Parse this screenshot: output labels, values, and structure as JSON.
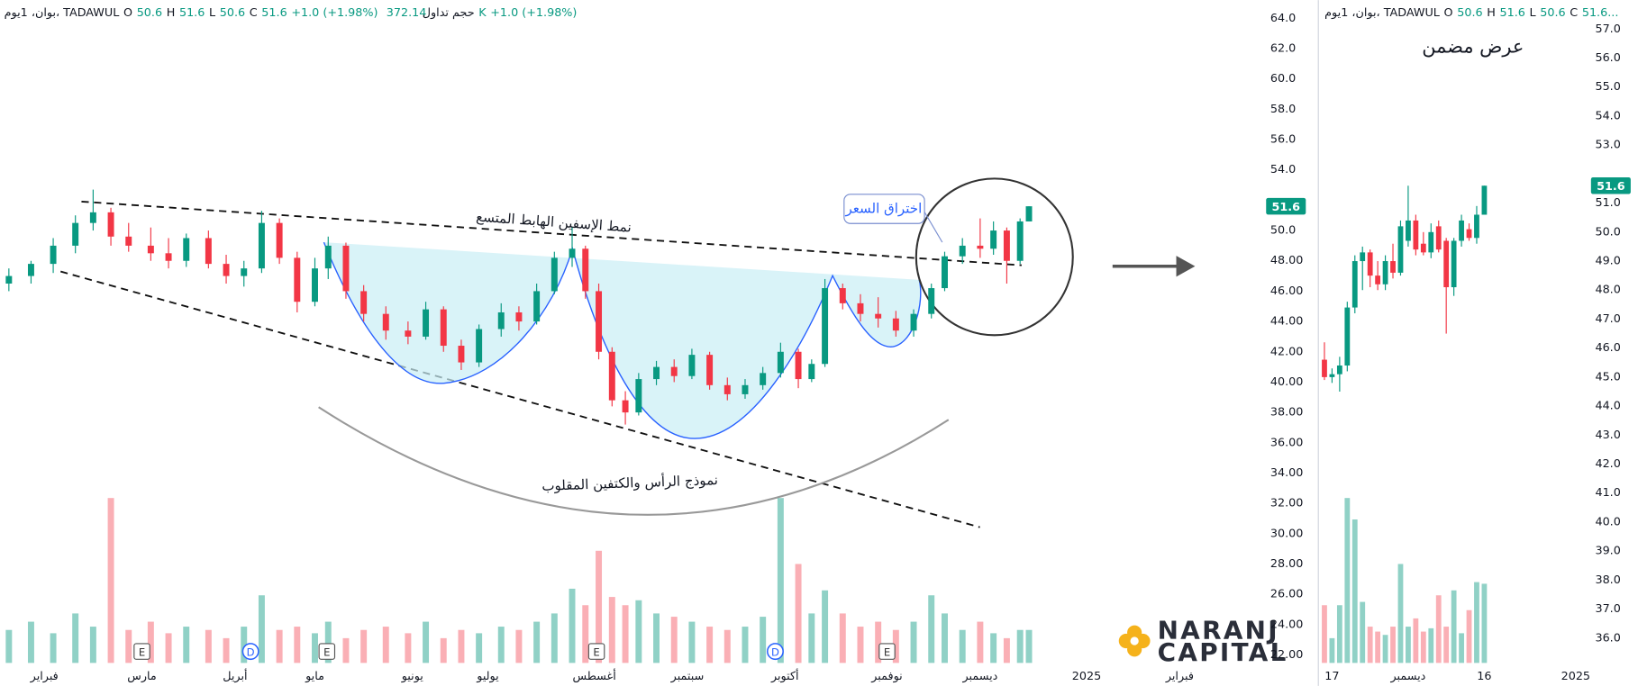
{
  "chart_data": [
    {
      "type": "candlestick",
      "header": [
        {
          "text": "بوان، 1يوم، TADAWUL"
        },
        {
          "text": "O"
        },
        {
          "text": "50.6",
          "color": "#089981"
        },
        {
          "text": "H"
        },
        {
          "text": "51.6",
          "color": "#089981"
        },
        {
          "text": "L"
        },
        {
          "text": "50.6",
          "color": "#089981"
        },
        {
          "text": "C"
        },
        {
          "text": "51.6",
          "color": "#089981"
        },
        {
          "text": "+1.0 (+1.98%)",
          "color": "#089981"
        },
        {
          "text": "حجم تداول"
        },
        {
          "text": "372.14K",
          "color": "#089981"
        },
        {
          "text": "+1.0 (+1.98%)",
          "color": "#089981"
        }
      ],
      "annotations": [
        "نمط الإسفين الهابط المتسع",
        "نموذج الرأس والكتفين المقلوب",
        "اختراق السعر"
      ],
      "up_color": "#089981",
      "down_color": "#f23645",
      "xlim": [
        -10,
        275
      ],
      "xticks": [
        {
          "value": 0,
          "label": "فبراير"
        },
        {
          "value": 22,
          "label": "مارس"
        },
        {
          "value": 43,
          "label": "أبريل"
        },
        {
          "value": 61,
          "label": "مايو"
        },
        {
          "value": 83,
          "label": "يونيو"
        },
        {
          "value": 100,
          "label": "يوليو"
        },
        {
          "value": 124,
          "label": "أغسطس"
        },
        {
          "value": 145,
          "label": "سبتمبر"
        },
        {
          "value": 167,
          "label": "أكتوبر"
        },
        {
          "value": 190,
          "label": "نوفمبر"
        },
        {
          "value": 211,
          "label": "ديسمبر"
        },
        {
          "value": 235,
          "label": "2025"
        },
        {
          "value": 256,
          "label": "فبراير"
        }
      ],
      "ylim": [
        21.2,
        65.2
      ],
      "yticks": [
        {
          "value": 22,
          "label": "22.00"
        },
        {
          "value": 24,
          "label": "24.00"
        },
        {
          "value": 26,
          "label": "26.00"
        },
        {
          "value": 28,
          "label": "28.00"
        },
        {
          "value": 30,
          "label": "30.00"
        },
        {
          "value": 32,
          "label": "32.00"
        },
        {
          "value": 34,
          "label": "34.00"
        },
        {
          "value": 36,
          "label": "36.00"
        },
        {
          "value": 38,
          "label": "38.00"
        },
        {
          "value": 40,
          "label": "40.00"
        },
        {
          "value": 42,
          "label": "42.00"
        },
        {
          "value": 44,
          "label": "44.00"
        },
        {
          "value": 46,
          "label": "46.00"
        },
        {
          "value": 48,
          "label": "48.00"
        },
        {
          "value": 50,
          "label": "50.0"
        },
        {
          "value": 54,
          "label": "54.0"
        },
        {
          "value": 56,
          "label": "56.0"
        },
        {
          "value": 58,
          "label": "58.0"
        },
        {
          "value": 60,
          "label": "60.0"
        },
        {
          "value": 62,
          "label": "62.0"
        },
        {
          "value": 64,
          "label": "64.0"
        }
      ],
      "last": 51.6,
      "volume_lim": [
        0,
        100
      ],
      "x": [
        -8,
        -3,
        2,
        7,
        11,
        15,
        19,
        24,
        28,
        32,
        37,
        41,
        45,
        49,
        53,
        57,
        61,
        64,
        68,
        72,
        77,
        82,
        86,
        90,
        94,
        98,
        103,
        107,
        111,
        115,
        119,
        122,
        125,
        128,
        131,
        134,
        138,
        142,
        146,
        150,
        154,
        158,
        162,
        166,
        170,
        173,
        176,
        180,
        184,
        188,
        192,
        196,
        200,
        203,
        207,
        211,
        214,
        217,
        220,
        222
      ],
      "open": [
        46.5,
        47.0,
        47.8,
        49.0,
        50.5,
        51.2,
        49.6,
        49.0,
        48.5,
        48.0,
        49.5,
        47.8,
        47.0,
        47.5,
        50.5,
        48.2,
        45.3,
        47.5,
        49.0,
        46.0,
        44.5,
        43.4,
        43.0,
        44.8,
        42.4,
        41.3,
        43.5,
        44.6,
        44.0,
        46.0,
        48.2,
        48.8,
        46.0,
        42.0,
        38.8,
        38.0,
        40.2,
        41.0,
        40.4,
        41.8,
        39.8,
        39.2,
        39.8,
        40.6,
        42.0,
        40.2,
        41.2,
        46.2,
        45.2,
        44.5,
        44.2,
        43.4,
        44.5,
        46.2,
        48.3,
        49.0,
        48.8,
        50.0,
        48.0,
        50.6
      ],
      "high": [
        47.5,
        48.0,
        49.5,
        51.0,
        52.7,
        51.5,
        50.5,
        50.2,
        49.5,
        49.8,
        50.0,
        48.4,
        48.0,
        51.3,
        50.8,
        48.6,
        48.2,
        49.6,
        49.2,
        46.4,
        45.0,
        44.0,
        45.3,
        45.0,
        42.8,
        43.8,
        45.2,
        45.0,
        46.5,
        48.6,
        50.2,
        49.0,
        46.5,
        42.3,
        39.4,
        40.6,
        41.4,
        41.5,
        42.2,
        42.0,
        40.3,
        40.2,
        41.0,
        42.6,
        42.2,
        41.5,
        46.8,
        46.5,
        45.8,
        45.6,
        44.7,
        44.8,
        46.5,
        48.6,
        49.5,
        50.8,
        50.6,
        50.2,
        50.8,
        51.6
      ],
      "low": [
        46.0,
        46.5,
        47.2,
        48.5,
        50.0,
        49.0,
        48.6,
        48.0,
        47.5,
        47.6,
        47.5,
        46.5,
        46.3,
        47.2,
        47.8,
        44.6,
        45.0,
        46.8,
        45.5,
        44.0,
        42.8,
        42.5,
        42.8,
        42.0,
        40.8,
        41.0,
        43.0,
        43.4,
        43.8,
        45.8,
        47.6,
        45.5,
        41.5,
        38.4,
        37.2,
        37.8,
        39.8,
        40.0,
        40.2,
        39.5,
        38.8,
        38.9,
        39.5,
        40.3,
        39.6,
        40.0,
        41.0,
        44.8,
        44.0,
        43.6,
        43.0,
        43.0,
        44.2,
        46.0,
        47.8,
        48.2,
        48.4,
        46.5,
        47.8,
        50.6
      ],
      "close": [
        47.0,
        47.8,
        49.0,
        50.5,
        51.2,
        49.6,
        49.0,
        48.5,
        48.0,
        49.5,
        47.8,
        47.0,
        47.5,
        50.5,
        48.2,
        45.3,
        47.5,
        49.0,
        46.0,
        44.5,
        43.4,
        43.0,
        44.8,
        42.4,
        41.3,
        43.5,
        44.6,
        44.0,
        46.0,
        48.2,
        48.8,
        46.0,
        42.0,
        38.8,
        38.0,
        40.2,
        41.0,
        40.4,
        41.8,
        39.8,
        39.2,
        39.8,
        40.6,
        42.0,
        40.2,
        41.2,
        46.2,
        45.2,
        44.5,
        44.2,
        43.4,
        44.5,
        46.2,
        48.3,
        49.0,
        48.8,
        50.0,
        48.0,
        50.6,
        51.6
      ],
      "volume": [
        20,
        25,
        18,
        30,
        22,
        100,
        20,
        25,
        18,
        22,
        20,
        15,
        22,
        41,
        20,
        22,
        18,
        25,
        15,
        20,
        22,
        18,
        25,
        15,
        20,
        18,
        22,
        20,
        25,
        30,
        45,
        35,
        68,
        40,
        35,
        38,
        30,
        28,
        25,
        22,
        20,
        22,
        28,
        100,
        60,
        30,
        44,
        30,
        22,
        25,
        20,
        25,
        41,
        30,
        20,
        25,
        18,
        15,
        20,
        20
      ],
      "markers": [
        {
          "label": "E",
          "x": 22,
          "shape": "square"
        },
        {
          "label": "D",
          "x": 46.5,
          "shape": "circle"
        },
        {
          "label": "E",
          "x": 63.7,
          "shape": "square"
        },
        {
          "label": "E",
          "x": 124.5,
          "shape": "square"
        },
        {
          "label": "D",
          "x": 164.8,
          "shape": "circle"
        },
        {
          "label": "E",
          "x": 190,
          "shape": "square"
        }
      ]
    },
    {
      "type": "candlestick",
      "title": "عرض مضمن",
      "header": [
        {
          "text": "بوان، 1يوم، TADAWUL"
        },
        {
          "text": "O"
        },
        {
          "text": "50.6",
          "color": "#089981"
        },
        {
          "text": "H"
        },
        {
          "text": "51.6",
          "color": "#089981"
        },
        {
          "text": "L"
        },
        {
          "text": "50.6",
          "color": "#089981"
        },
        {
          "text": "C"
        },
        {
          "text": "51.6...",
          "color": "#089981"
        }
      ],
      "up_color": "#089981",
      "down_color": "#f23645",
      "xlim": [
        -0.8,
        34.6
      ],
      "xticks": [
        {
          "value": 1,
          "label": "17"
        },
        {
          "value": 11,
          "label": "ديسمبر"
        },
        {
          "value": 21,
          "label": "16"
        },
        {
          "value": 33,
          "label": "2025"
        }
      ],
      "ylim": [
        35,
        58
      ],
      "yticks": [
        {
          "value": 36,
          "label": "36.0"
        },
        {
          "value": 37,
          "label": "37.0"
        },
        {
          "value": 38,
          "label": "38.0"
        },
        {
          "value": 39,
          "label": "39.0"
        },
        {
          "value": 40,
          "label": "40.0"
        },
        {
          "value": 41,
          "label": "41.0"
        },
        {
          "value": 42,
          "label": "42.0"
        },
        {
          "value": 43,
          "label": "43.0"
        },
        {
          "value": 44,
          "label": "44.0"
        },
        {
          "value": 45,
          "label": "45.0"
        },
        {
          "value": 46,
          "label": "46.0"
        },
        {
          "value": 47,
          "label": "47.0"
        },
        {
          "value": 48,
          "label": "48.0"
        },
        {
          "value": 49,
          "label": "49.0"
        },
        {
          "value": 50,
          "label": "50.0"
        },
        {
          "value": 51,
          "label": "51.0"
        },
        {
          "value": 53,
          "label": "53.0"
        },
        {
          "value": 54,
          "label": "54.0"
        },
        {
          "value": 55,
          "label": "55.0"
        },
        {
          "value": 56,
          "label": "56.0"
        },
        {
          "value": 57,
          "label": "57.0"
        }
      ],
      "last": 51.6,
      "volume_lim": [
        0,
        100
      ],
      "x": [
        0,
        1,
        2,
        3,
        4,
        5,
        6,
        7,
        8,
        9,
        10,
        11,
        12,
        13,
        14,
        15,
        16,
        17,
        18,
        19,
        20,
        21
      ],
      "open": [
        45.6,
        45.0,
        45.1,
        45.4,
        47.4,
        49.0,
        49.3,
        48.5,
        48.2,
        49.0,
        48.6,
        49.7,
        50.4,
        49.6,
        49.3,
        50.2,
        49.7,
        48.1,
        49.7,
        50.1,
        49.8,
        50.6
      ],
      "high": [
        46.2,
        45.3,
        45.7,
        47.6,
        49.2,
        49.5,
        49.4,
        49.0,
        49.2,
        49.6,
        50.4,
        51.6,
        50.6,
        50.0,
        50.3,
        50.4,
        49.8,
        49.8,
        50.6,
        50.3,
        50.9,
        51.6
      ],
      "low": [
        44.9,
        44.8,
        44.5,
        45.2,
        47.2,
        48.0,
        48.1,
        48.0,
        48.0,
        48.4,
        48.5,
        49.5,
        49.2,
        49.2,
        49.1,
        49.3,
        46.5,
        47.8,
        49.5,
        49.7,
        49.6,
        50.6
      ],
      "close": [
        45.0,
        45.1,
        45.4,
        47.4,
        49.0,
        49.3,
        48.5,
        48.2,
        49.0,
        48.6,
        50.2,
        50.4,
        49.4,
        49.3,
        50.0,
        49.4,
        48.1,
        49.7,
        50.4,
        49.8,
        50.6,
        51.6
      ],
      "volume": [
        35,
        15,
        35,
        100,
        87,
        37,
        22,
        19,
        17,
        22,
        60,
        22,
        27,
        19,
        21,
        41,
        22,
        44,
        18,
        32,
        49,
        48
      ]
    }
  ],
  "logo": {
    "line1": "NARANJ",
    "line2": "CAPITAL"
  }
}
